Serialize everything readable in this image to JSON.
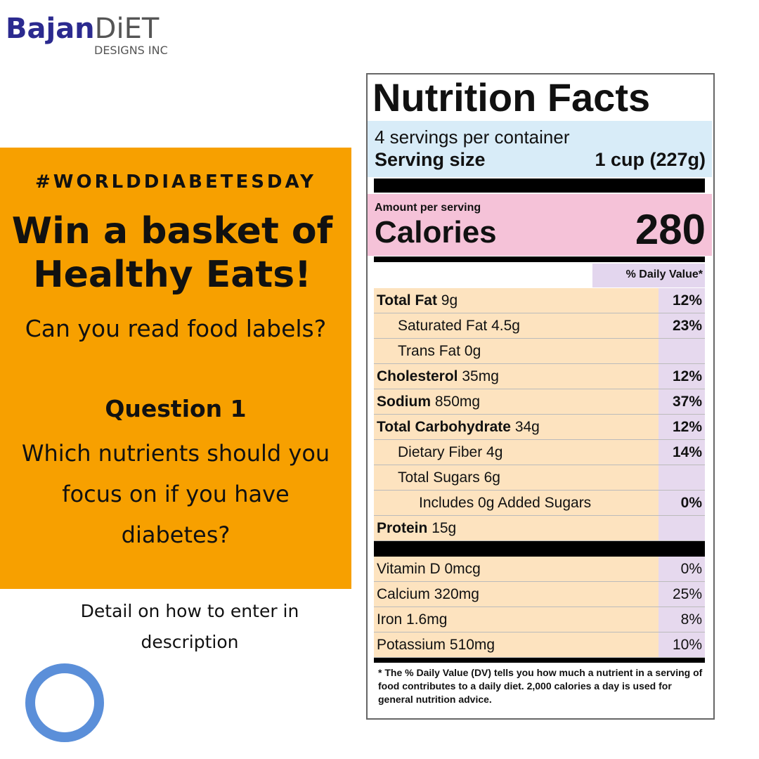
{
  "logo": {
    "name": "Bajan",
    "name2": "DiET",
    "sub": "DESIGNS INC"
  },
  "promo": {
    "hashtag": "#WORLDDIABETESDAY",
    "headline": "Win a basket of Healthy Eats!",
    "intro": "Can you read food labels?",
    "question_title": "Question 1",
    "question_text": "Which nutrients should you focus on if you have diabetes?",
    "detail": "Detail on how to enter in description"
  },
  "label": {
    "title": "Nutrition Facts",
    "servings": "4 servings per container",
    "serving_size_label": "Serving size",
    "serving_size_value": "1 cup (227g)",
    "amount_per_serving": "Amount per serving",
    "calories_label": "Calories",
    "calories_value": "280",
    "dv_header": "% Daily Value*",
    "rows": [
      {
        "name": "Total Fat",
        "amount": "9g",
        "dv": "12%"
      },
      {
        "name": "Saturated Fat",
        "amount": "4.5g",
        "dv": "23%"
      },
      {
        "name": "Trans Fat",
        "amount": "0g"
      },
      {
        "name": "Cholesterol",
        "amount": "35mg",
        "dv": "12%"
      },
      {
        "name": "Sodium",
        "amount": "850mg",
        "dv": "37%"
      },
      {
        "name": "Total Carbohydrate",
        "amount": "34g",
        "dv": "12%"
      },
      {
        "name": "Dietary Fiber",
        "amount": "4g",
        "dv": "14%"
      },
      {
        "name": "Total Sugars",
        "amount": "6g"
      },
      {
        "name": "Includes 0g Added Sugars",
        "dv": "0%"
      },
      {
        "name": "Protein",
        "amount": "15g"
      }
    ],
    "vitamins": [
      {
        "name": "Vitamin D",
        "amount": "0mcg",
        "dv": "0%"
      },
      {
        "name": "Calcium",
        "amount": "320mg",
        "dv": "25%"
      },
      {
        "name": "Iron",
        "amount": "1.6mg",
        "dv": "8%"
      },
      {
        "name": "Potassium",
        "amount": "510mg",
        "dv": "10%"
      }
    ],
    "footnote": "* The % Daily Value (DV) tells you how much a nutrient in a serving of food contributes to a daily diet. 2,000 calories a day is used for general nutrition advice."
  }
}
